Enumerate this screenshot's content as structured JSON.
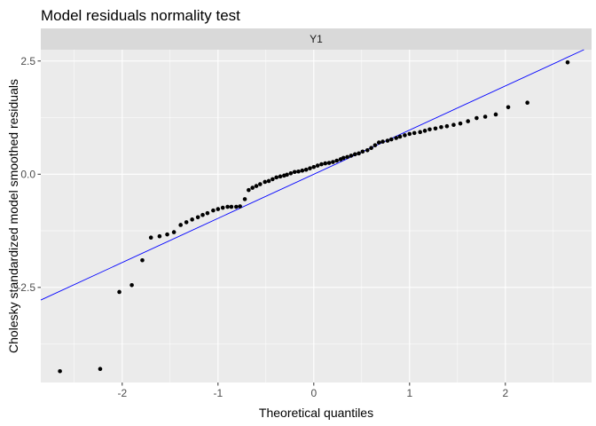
{
  "chart_data": {
    "type": "scatter",
    "title": "Model residuals normality test",
    "facet_label": "Y1",
    "xlabel": "Theoretical quantiles",
    "ylabel": "Cholesky standardized model smoothed residuals",
    "xlim": [
      -2.85,
      2.9
    ],
    "ylim": [
      -4.6,
      2.75
    ],
    "x_ticks": [
      -2,
      -1,
      0,
      1,
      2
    ],
    "x_tick_labels": [
      "-2",
      "-1",
      "0",
      "1",
      "2"
    ],
    "y_ticks": [
      -2.5,
      0.0,
      2.5
    ],
    "y_tick_labels": [
      "-2.5",
      "0.0",
      "2.5"
    ],
    "grid": true,
    "legend": "none",
    "reference_line": {
      "intercept": 0.0,
      "slope": 0.975,
      "color": "#0000ff"
    },
    "colors": {
      "panel": "#ebebeb",
      "strip": "#d9d9d9",
      "grid_major": "#ffffff",
      "points": "#000000",
      "line": "#0000ff"
    },
    "points": {
      "x": [
        -2.65,
        -2.23,
        -2.03,
        -1.9,
        -1.79,
        -1.7,
        -1.61,
        -1.53,
        -1.46,
        -1.39,
        -1.33,
        -1.27,
        -1.21,
        -1.16,
        -1.11,
        -1.05,
        -1.0,
        -0.95,
        -0.9,
        -0.86,
        -0.81,
        -0.77,
        -0.72,
        -0.68,
        -0.64,
        -0.6,
        -0.56,
        -0.51,
        -0.47,
        -0.43,
        -0.39,
        -0.35,
        -0.31,
        -0.28,
        -0.24,
        -0.2,
        -0.16,
        -0.12,
        -0.08,
        -0.04,
        0.0,
        0.04,
        0.08,
        0.12,
        0.16,
        0.2,
        0.24,
        0.28,
        0.31,
        0.35,
        0.39,
        0.43,
        0.47,
        0.51,
        0.56,
        0.6,
        0.64,
        0.68,
        0.72,
        0.77,
        0.81,
        0.86,
        0.9,
        0.95,
        1.0,
        1.05,
        1.11,
        1.16,
        1.21,
        1.27,
        1.33,
        1.39,
        1.46,
        1.53,
        1.61,
        1.7,
        1.79,
        1.9,
        2.03,
        2.23,
        2.65
      ],
      "y": [
        -4.35,
        -4.3,
        -2.6,
        -2.45,
        -1.9,
        -1.4,
        -1.37,
        -1.33,
        -1.28,
        -1.12,
        -1.06,
        -1.0,
        -0.95,
        -0.9,
        -0.86,
        -0.8,
        -0.77,
        -0.74,
        -0.72,
        -0.72,
        -0.72,
        -0.71,
        -0.55,
        -0.35,
        -0.3,
        -0.26,
        -0.22,
        -0.17,
        -0.15,
        -0.11,
        -0.07,
        -0.05,
        -0.03,
        -0.01,
        0.02,
        0.05,
        0.06,
        0.08,
        0.1,
        0.13,
        0.16,
        0.19,
        0.22,
        0.24,
        0.25,
        0.27,
        0.3,
        0.33,
        0.36,
        0.38,
        0.41,
        0.44,
        0.46,
        0.5,
        0.53,
        0.58,
        0.64,
        0.7,
        0.72,
        0.74,
        0.77,
        0.8,
        0.83,
        0.86,
        0.89,
        0.91,
        0.93,
        0.96,
        0.99,
        1.01,
        1.04,
        1.06,
        1.09,
        1.12,
        1.17,
        1.24,
        1.27,
        1.32,
        1.48,
        1.58,
        2.47
      ]
    }
  }
}
